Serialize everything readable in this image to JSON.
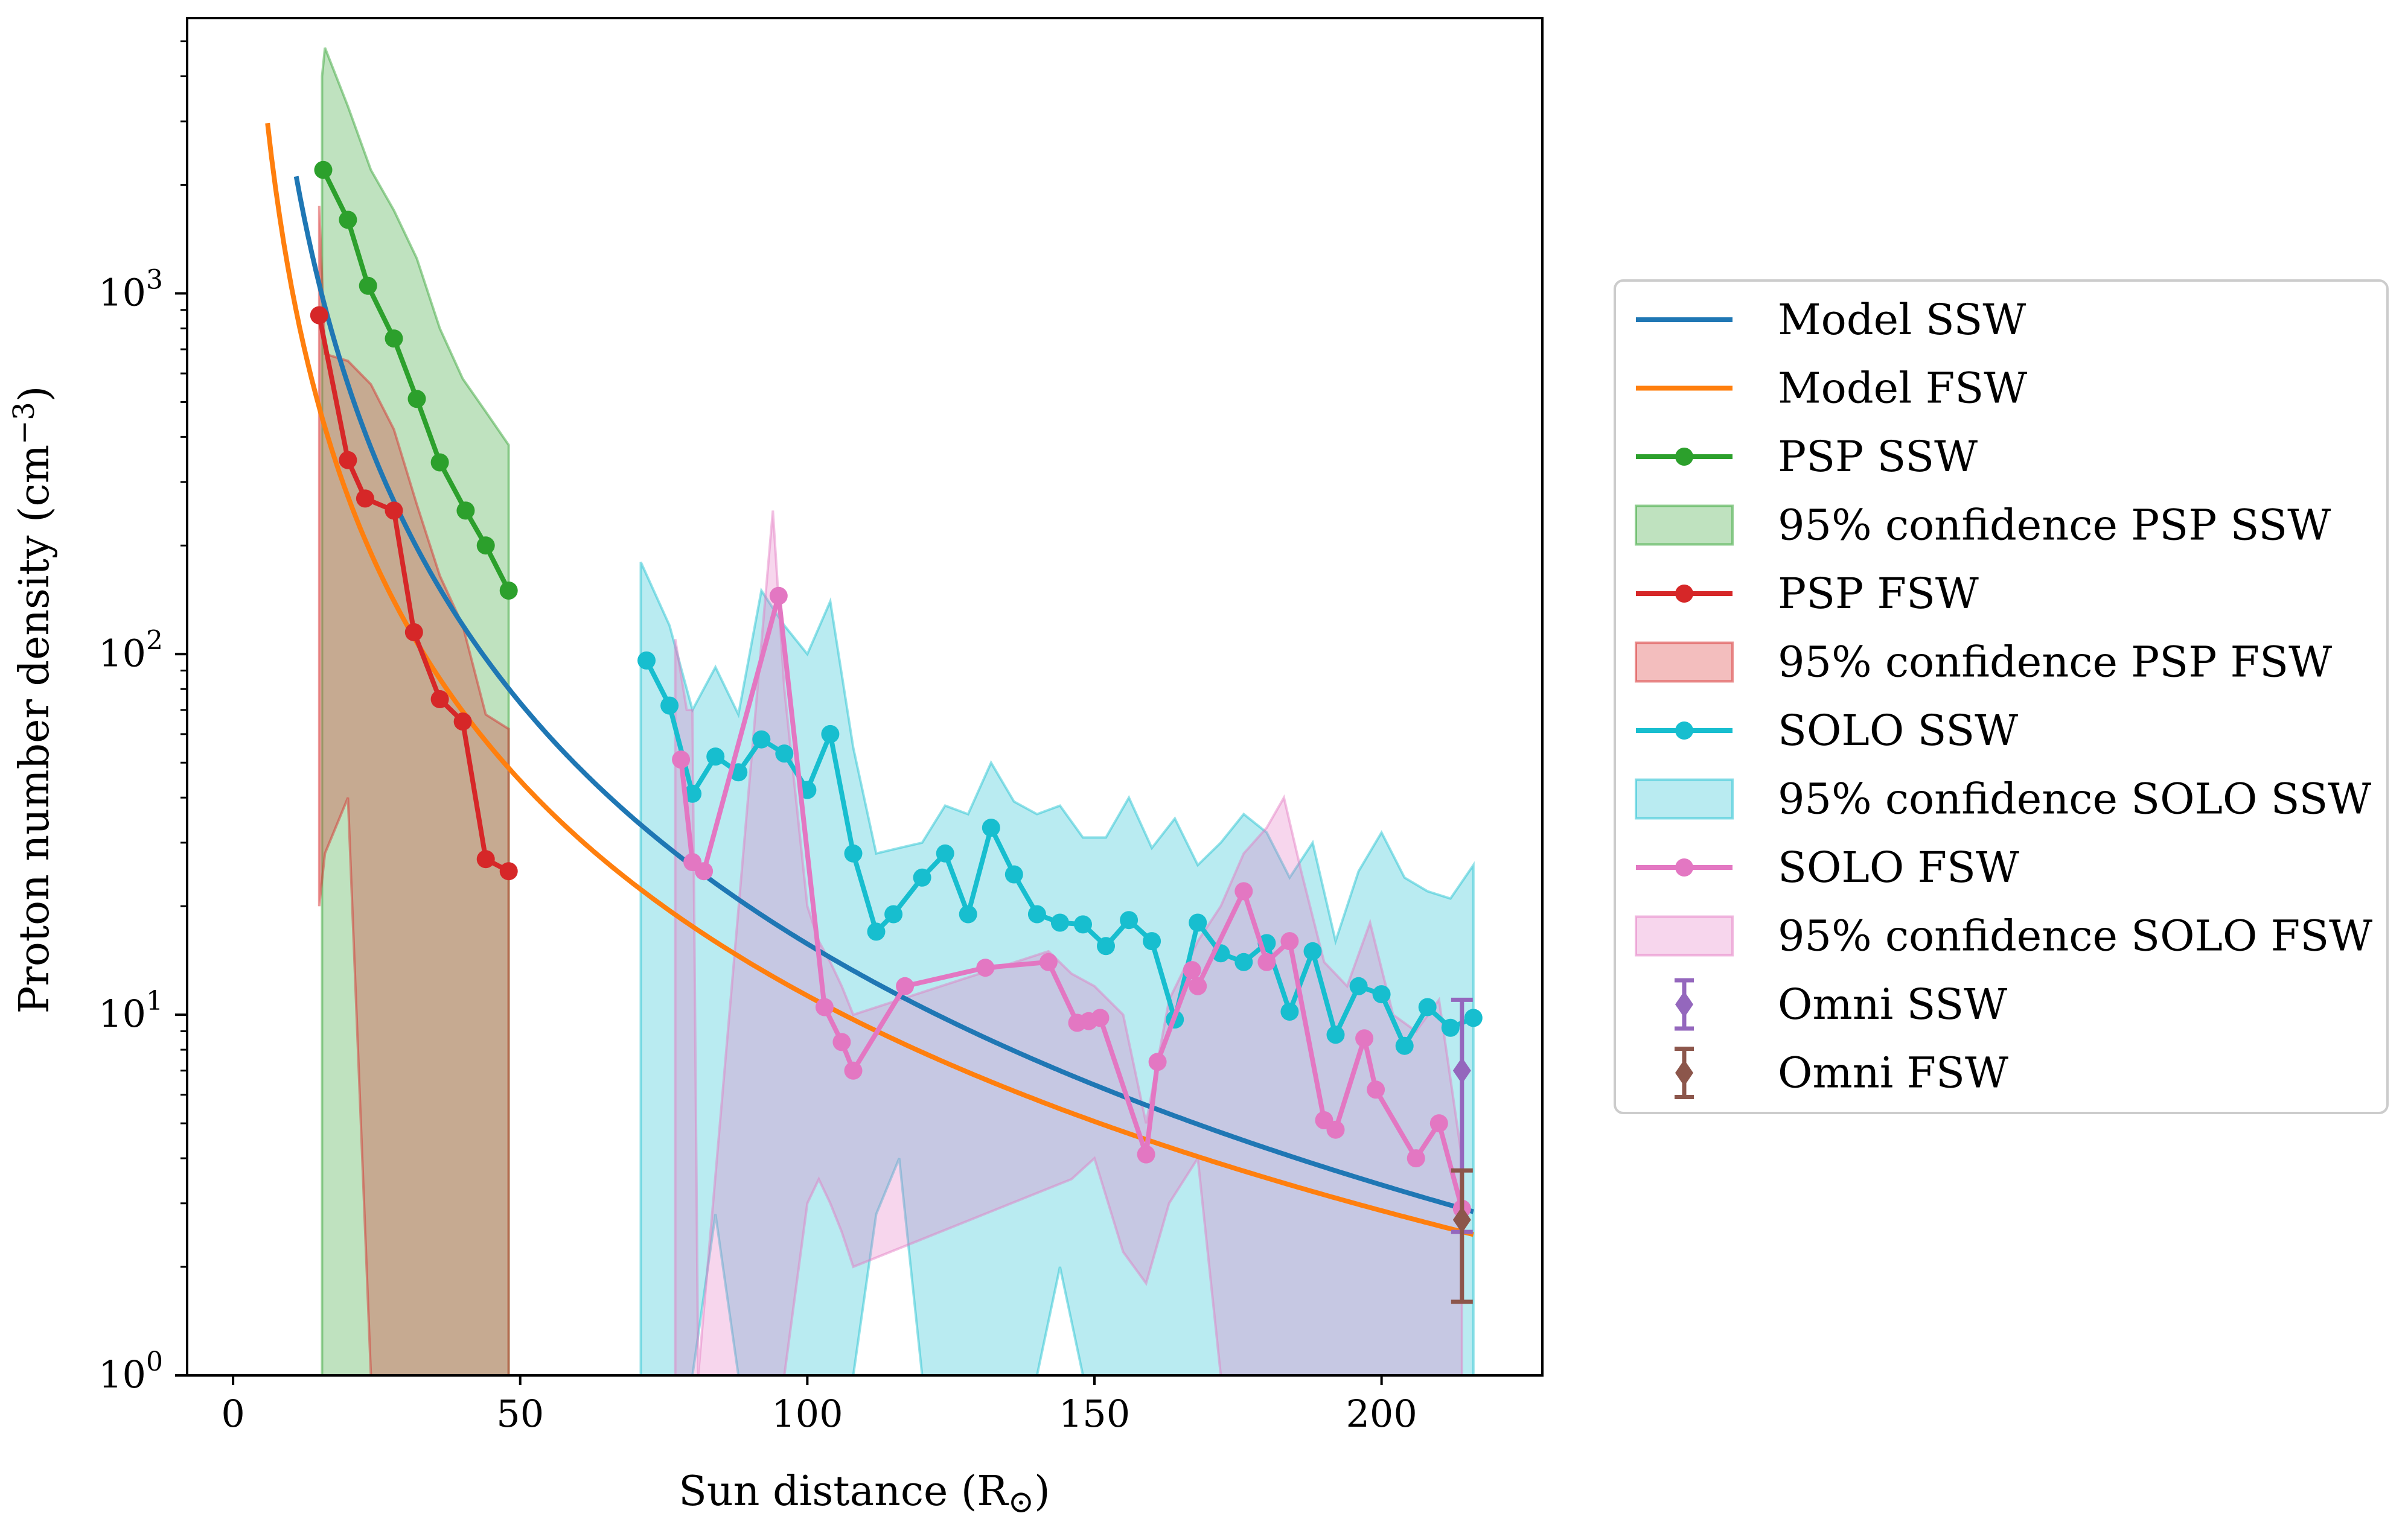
{
  "chart_data": {
    "type": "line",
    "xlabel": "Sun distance (R",
    "xlabel_symbol": "⊙",
    "xlabel_close": ")",
    "ylabel": "Proton number density (cm",
    "ylabel_sup": "−3",
    "ylabel_close": ")",
    "xlim": [
      -8,
      228
    ],
    "ylim": [
      1,
      5800
    ],
    "yscale": "log",
    "grid": false,
    "legend_position": "right, outside plot area",
    "x_ticks": [
      {
        "value": 0,
        "label": "0"
      },
      {
        "value": 50,
        "label": "50"
      },
      {
        "value": 100,
        "label": "100"
      },
      {
        "value": 150,
        "label": "150"
      },
      {
        "value": 200,
        "label": "200"
      }
    ],
    "y_ticks": [
      {
        "value": 1,
        "base": "10",
        "exp": "0"
      },
      {
        "value": 10,
        "base": "10",
        "exp": "1"
      },
      {
        "value": 100,
        "base": "10",
        "exp": "2"
      },
      {
        "value": 1000,
        "base": "10",
        "exp": "3"
      }
    ],
    "models": [
      {
        "name": "Model SSW",
        "color": "#1f77b4",
        "coef": 433000,
        "exp": -2.22,
        "x_start": 11,
        "x_end": 216
      },
      {
        "name": "Model FSW",
        "color": "#ff7f0e",
        "coef": 103000,
        "exp": -1.98,
        "x_start": 6,
        "x_end": 216
      }
    ],
    "series": [
      {
        "name": "PSP SSW",
        "color": "#2ca02c",
        "x": [
          15.7,
          20,
          23.5,
          28,
          32,
          36,
          40.5,
          44,
          48
        ],
        "y": [
          2200,
          1600,
          1050,
          750,
          510,
          340,
          250,
          200,
          150
        ]
      },
      {
        "name": "PSP FSW",
        "color": "#d62728",
        "x": [
          15,
          20,
          23,
          28,
          31.5,
          36,
          40,
          44,
          48
        ],
        "y": [
          870,
          345,
          270,
          250,
          115,
          75,
          65,
          27,
          25
        ]
      },
      {
        "name": "SOLO SSW",
        "color": "#17becf",
        "x": [
          72,
          76,
          80,
          84,
          88,
          92,
          96,
          100,
          104,
          108,
          112,
          115,
          120,
          124,
          128,
          132,
          136,
          140,
          144,
          148,
          152,
          156,
          160,
          164,
          168,
          172,
          176,
          180,
          184,
          188,
          192,
          196,
          200,
          204,
          208,
          212,
          216
        ],
        "y": [
          96,
          72,
          41,
          52,
          47,
          58,
          53,
          42,
          60,
          28,
          17,
          19,
          24,
          28,
          19,
          33,
          24.5,
          19,
          18,
          17.8,
          15.5,
          18.3,
          16,
          9.7,
          18,
          14.8,
          14,
          15.8,
          10.2,
          15,
          8.8,
          12,
          11.4,
          8.2,
          10.5,
          9.2,
          9.8
        ]
      },
      {
        "name": "SOLO FSW",
        "color": "#e377c2",
        "x": [
          78,
          80,
          82,
          95,
          103,
          106,
          108,
          117,
          131,
          142,
          147,
          149,
          151,
          159,
          161,
          167,
          168,
          176,
          180,
          184,
          190,
          192,
          197,
          199,
          206,
          210,
          214
        ],
        "y": [
          51,
          26.5,
          25,
          145,
          10.5,
          8.4,
          7,
          12,
          13.5,
          14,
          9.5,
          9.6,
          9.8,
          4.1,
          7.4,
          13.3,
          12,
          22,
          14,
          16,
          5.1,
          4.8,
          8.6,
          6.2,
          4,
          5,
          2.9
        ]
      }
    ],
    "confidence_bands": [
      {
        "name": "95% confidence PSP SSW",
        "color": "#2ca02c",
        "x": [
          15.5,
          16,
          20,
          24,
          28,
          32,
          36,
          40,
          44,
          48
        ],
        "upper": [
          4000,
          4800,
          3300,
          2200,
          1700,
          1250,
          800,
          580,
          470,
          380
        ],
        "lower": [
          1,
          1,
          1,
          1,
          1,
          1,
          1,
          1,
          1,
          1
        ]
      },
      {
        "name": "95% confidence PSP FSW",
        "color": "#d62728",
        "x": [
          15,
          16,
          20,
          24,
          28,
          32,
          36,
          40,
          44,
          48
        ],
        "upper": [
          1750,
          680,
          650,
          560,
          420,
          260,
          165,
          120,
          68,
          62
        ],
        "lower": [
          20,
          28,
          40,
          1,
          1,
          1,
          1,
          1,
          1,
          1
        ]
      },
      {
        "name": "95% confidence SOLO SSW",
        "color": "#17becf",
        "x": [
          71,
          76,
          80,
          84,
          88,
          92,
          96,
          100,
          104,
          108,
          112,
          116,
          120,
          124,
          128,
          132,
          136,
          140,
          144,
          148,
          152,
          156,
          160,
          164,
          168,
          172,
          176,
          180,
          184,
          188,
          192,
          196,
          200,
          204,
          208,
          212,
          216
        ],
        "upper": [
          180,
          120,
          70,
          92,
          68,
          150,
          120,
          100,
          140,
          55,
          28,
          29,
          30,
          38,
          36,
          50,
          39,
          36,
          38,
          31,
          31,
          40,
          29,
          35,
          26,
          30,
          36,
          32,
          24,
          30,
          16,
          25,
          32,
          24,
          22,
          21,
          26
        ],
        "lower": [
          1,
          1,
          1,
          2.8,
          1,
          1,
          1,
          1,
          1,
          1,
          2.8,
          4,
          1,
          1,
          1,
          1,
          1,
          1,
          2,
          1,
          1,
          1,
          1,
          1,
          1,
          1,
          1,
          1,
          1,
          1,
          1,
          1,
          1,
          1,
          1,
          1,
          1
        ]
      },
      {
        "name": "95% confidence SOLO FSW",
        "color": "#e377c2",
        "x": [
          77,
          79,
          80,
          81,
          94,
          96,
          100,
          102,
          104,
          106,
          108,
          142,
          146,
          150,
          155,
          159,
          163,
          168,
          172,
          176,
          180,
          183,
          186,
          190,
          194,
          198,
          202,
          206,
          210,
          214
        ],
        "upper": [
          110,
          70,
          70,
          1,
          250,
          80,
          20,
          16,
          14,
          12,
          10,
          15,
          13,
          12,
          10,
          5,
          11,
          16,
          20,
          28,
          33,
          40,
          25,
          14,
          12,
          18,
          10,
          9,
          11,
          4
        ],
        "lower": [
          1,
          1,
          1,
          1,
          1,
          1,
          3,
          3.5,
          3,
          2.5,
          2,
          3.3,
          3.5,
          4,
          2.2,
          1.8,
          3,
          4,
          1,
          1,
          1,
          1,
          1,
          1,
          1,
          1,
          1,
          1,
          1,
          1
        ]
      }
    ],
    "omni": [
      {
        "name": "Omni SSW",
        "color": "#9467bd",
        "x": 214,
        "y": 7,
        "yerr_low": 2.5,
        "yerr_high": 11
      },
      {
        "name": "Omni FSW",
        "color": "#8c564b",
        "x": 214,
        "y": 2.7,
        "yerr_low": 1.6,
        "yerr_high": 3.7
      }
    ],
    "legend": [
      {
        "label": "Model SSW",
        "kind": "line",
        "color": "#1f77b4"
      },
      {
        "label": "Model FSW",
        "kind": "line",
        "color": "#ff7f0e"
      },
      {
        "label": "PSP SSW",
        "kind": "marker-line",
        "color": "#2ca02c"
      },
      {
        "label": "95% confidence PSP SSW",
        "kind": "patch",
        "color": "#2ca02c"
      },
      {
        "label": "PSP FSW",
        "kind": "marker-line",
        "color": "#d62728"
      },
      {
        "label": "95% confidence PSP FSW",
        "kind": "patch",
        "color": "#d62728"
      },
      {
        "label": "SOLO SSW",
        "kind": "marker-line",
        "color": "#17becf"
      },
      {
        "label": "95% confidence SOLO SSW",
        "kind": "patch",
        "color": "#17becf"
      },
      {
        "label": "SOLO FSW",
        "kind": "marker-line",
        "color": "#e377c2"
      },
      {
        "label": "95% confidence SOLO FSW",
        "kind": "patch",
        "color": "#e377c2"
      },
      {
        "label": "Omni SSW",
        "kind": "errorbar",
        "color": "#9467bd"
      },
      {
        "label": "Omni FSW",
        "kind": "errorbar",
        "color": "#8c564b"
      }
    ]
  }
}
